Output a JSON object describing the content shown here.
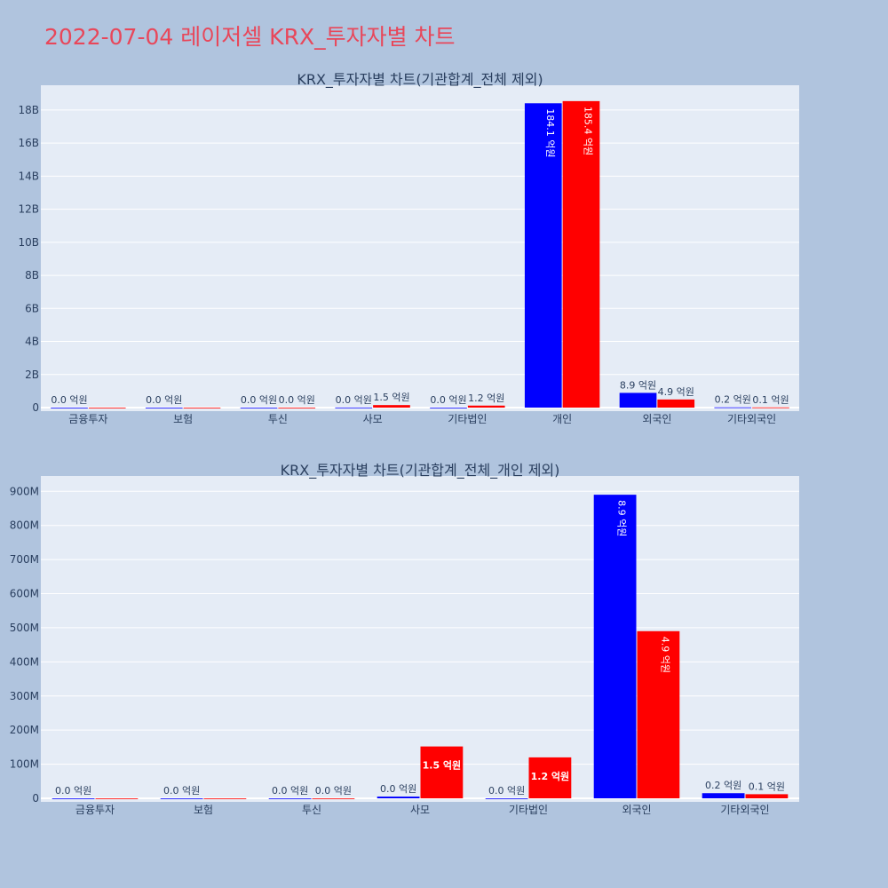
{
  "title": "2022-07-04 레이저셀 KRX_투자자별 차트",
  "colors": {
    "buy": "#0000ff",
    "sell": "#ff0000",
    "plot_bg": "#e5ecf6",
    "page_bg": "#b0c4de",
    "title": "#e8475a"
  },
  "chart_data": [
    {
      "type": "bar",
      "title": "KRX_투자자별 차트(기관합계_전체 제외)",
      "categories": [
        "금융투자",
        "보험",
        "투신",
        "사모",
        "기타법인",
        "개인",
        "외국인",
        "기타외국인"
      ],
      "ylim": [
        0,
        19500000000
      ],
      "yticks": [
        0,
        2000000000,
        4000000000,
        6000000000,
        8000000000,
        10000000000,
        12000000000,
        14000000000,
        16000000000,
        18000000000
      ],
      "ytick_labels": [
        "0",
        "2B",
        "4B",
        "6B",
        "8B",
        "10B",
        "12B",
        "14B",
        "16B",
        "18B"
      ],
      "grid": true,
      "series": [
        {
          "color": "#0000ff",
          "values": [
            0,
            0,
            0,
            5000000,
            0,
            18410000000,
            890000000,
            15000000
          ],
          "labels": [
            "0.0 억원",
            "0.0 억원",
            "0.0 억원",
            "0.0 억원",
            "0.0 억원",
            "184.1 억원",
            "8.9 억원",
            "0.2 억원"
          ]
        },
        {
          "color": "#ff0000",
          "values": [
            0,
            0,
            0,
            152000000,
            120000000,
            18540000000,
            490000000,
            12000000
          ],
          "labels": [
            "",
            "",
            "0.0 억원",
            "1.5 억원",
            "1.2 억원",
            "185.4 억원",
            "4.9 억원",
            "0.1 억원"
          ]
        }
      ]
    },
    {
      "type": "bar",
      "title": "KRX_투자자별 차트(기관합계_전체_개인 제외)",
      "categories": [
        "금융투자",
        "보험",
        "투신",
        "사모",
        "기타법인",
        "외국인",
        "기타외국인"
      ],
      "ylim": [
        0,
        945000000
      ],
      "yticks": [
        0,
        100000000,
        200000000,
        300000000,
        400000000,
        500000000,
        600000000,
        700000000,
        800000000,
        900000000
      ],
      "ytick_labels": [
        "0",
        "100M",
        "200M",
        "300M",
        "400M",
        "500M",
        "600M",
        "700M",
        "800M",
        "900M"
      ],
      "grid": true,
      "series": [
        {
          "color": "#0000ff",
          "values": [
            0,
            0,
            0,
            5000000,
            0,
            890000000,
            15000000
          ],
          "labels": [
            "0.0 억원",
            "0.0 억원",
            "0.0 억원",
            "0.0 억원",
            "0.0 억원",
            "8.9 억원",
            "0.2 억원"
          ]
        },
        {
          "color": "#ff0000",
          "values": [
            0,
            0,
            0,
            152000000,
            120000000,
            490000000,
            12000000
          ],
          "labels": [
            "",
            "",
            "0.0 억원",
            "1.5 억원",
            "1.2 억원",
            "4.9 억원",
            "0.1 억원"
          ]
        }
      ]
    }
  ]
}
